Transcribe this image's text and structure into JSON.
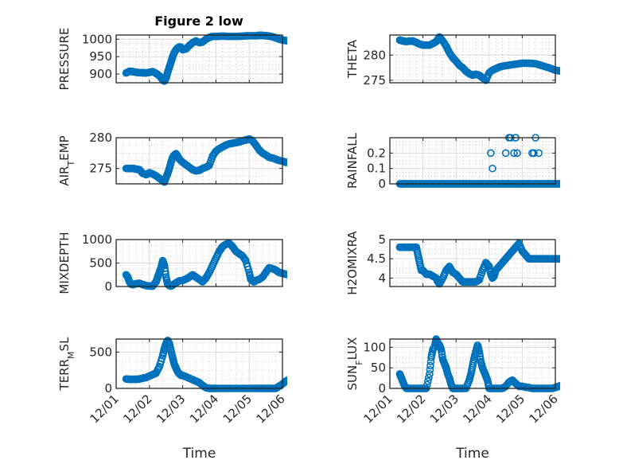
{
  "chart_data": {
    "type": "scatter",
    "title": "Figure 2 low",
    "x_tick_labels": [
      "12/01",
      "12/02",
      "12/03",
      "12/04",
      "12/05",
      "12/06"
    ],
    "x_unit": "days since 12/01",
    "xlim": [
      0,
      5
    ],
    "marker_color": "#0072BD",
    "marker": "circle-open",
    "grid": true,
    "subplots": [
      {
        "name": "pressure",
        "ylabel": "PRESSURE",
        "ylabel_main": "PRESSURE",
        "ylabel_sub": "",
        "ylabel_tail": "",
        "ylim": [
          875,
          1012
        ],
        "yticks": [
          900,
          950,
          1000
        ],
        "xlabel": "",
        "x": [
          0.3,
          0.4,
          0.5,
          0.6,
          0.7,
          0.8,
          0.9,
          1.0,
          1.1,
          1.2,
          1.3,
          1.4,
          1.45,
          1.5,
          1.55,
          1.6,
          1.65,
          1.7,
          1.75,
          1.8,
          1.85,
          1.9,
          1.95,
          2.0,
          2.1,
          2.2,
          2.3,
          2.4,
          2.5,
          2.6,
          2.7,
          2.8,
          2.9,
          3.0,
          3.2,
          3.4,
          3.6,
          3.8,
          4.0,
          4.2,
          4.3,
          4.4,
          4.5,
          4.6,
          4.7,
          4.8,
          4.9,
          5.0,
          5.1,
          5.2,
          5.3,
          5.4
        ],
        "y": [
          903,
          908,
          907,
          905,
          904,
          904,
          903,
          905,
          907,
          902,
          895,
          883,
          880,
          888,
          905,
          920,
          935,
          950,
          962,
          970,
          975,
          978,
          977,
          970,
          972,
          982,
          990,
          995,
          990,
          992,
          1000,
          1005,
          1008,
          1008,
          1009,
          1008,
          1008,
          1009,
          1010,
          1010,
          1011,
          1011,
          1010,
          1009,
          1007,
          1004,
          1000,
          998,
          996,
          995,
          994,
          991
        ]
      },
      {
        "name": "theta",
        "ylabel": "THETA",
        "ylabel_main": "THETA",
        "ylabel_sub": "",
        "ylabel_tail": "",
        "ylim": [
          274.5,
          284
        ],
        "yticks": [
          275,
          280
        ],
        "xlabel": "",
        "x": [
          0.3,
          0.4,
          0.5,
          0.6,
          0.7,
          0.8,
          0.9,
          1.0,
          1.1,
          1.2,
          1.3,
          1.4,
          1.5,
          1.6,
          1.7,
          1.8,
          1.9,
          2.0,
          2.1,
          2.2,
          2.3,
          2.4,
          2.5,
          2.6,
          2.7,
          2.8,
          2.9,
          3.0,
          3.1,
          3.2,
          3.3,
          3.4,
          3.6,
          3.8,
          4.0,
          4.2,
          4.4,
          4.6,
          4.8,
          5.0,
          5.2,
          5.3,
          5.4
        ],
        "y": [
          283,
          282.8,
          282.7,
          282.8,
          282.8,
          282.5,
          282.2,
          282,
          282,
          282,
          282.3,
          282.7,
          283.6,
          282.8,
          281.8,
          280.5,
          279.5,
          278.8,
          278,
          277.5,
          276.8,
          276.3,
          276,
          276.2,
          276,
          275.5,
          275,
          276.5,
          277,
          277.3,
          277.6,
          277.8,
          278,
          278.2,
          278.4,
          278.4,
          278.3,
          277.9,
          277.5,
          277,
          276.8,
          276.8,
          276.7
        ]
      },
      {
        "name": "air-temp",
        "ylabel": "AIR_TEMP",
        "ylabel_main": "AIR",
        "ylabel_sub": "T",
        "ylabel_tail": "EMP",
        "ylim": [
          272.5,
          280
        ],
        "yticks": [
          275,
          280
        ],
        "xlabel": "",
        "x": [
          0.3,
          0.4,
          0.5,
          0.6,
          0.7,
          0.8,
          0.9,
          1.0,
          1.1,
          1.2,
          1.3,
          1.4,
          1.45,
          1.5,
          1.55,
          1.6,
          1.65,
          1.7,
          1.75,
          1.8,
          1.85,
          1.9,
          2.0,
          2.1,
          2.2,
          2.3,
          2.4,
          2.5,
          2.6,
          2.7,
          2.8,
          2.9,
          3.0,
          3.1,
          3.2,
          3.3,
          3.4,
          3.5,
          3.6,
          3.7,
          3.8,
          3.9,
          4.0,
          4.1,
          4.2,
          4.3,
          4.4,
          4.5,
          4.6,
          4.7,
          4.8,
          4.9,
          5.0,
          5.1,
          5.2,
          5.3,
          5.4
        ],
        "y": [
          275,
          275,
          275,
          274.9,
          274.8,
          274.2,
          274.0,
          274.3,
          274.1,
          273.8,
          273.4,
          273.0,
          272.8,
          273.5,
          274.2,
          275.0,
          276.0,
          276.8,
          277.2,
          277.4,
          277.0,
          276.5,
          276.0,
          275.6,
          275.2,
          274.8,
          274.6,
          274.7,
          275.0,
          275.2,
          275.5,
          277.0,
          277.8,
          278.2,
          278.5,
          278.8,
          279.0,
          279.1,
          279.2,
          279.3,
          279.5,
          279.6,
          279.8,
          279.5,
          278.8,
          278.0,
          277.5,
          277.2,
          276.8,
          276.7,
          276.5,
          276.3,
          276.2,
          276.0,
          276,
          275.9,
          275.8
        ]
      },
      {
        "name": "rainfall",
        "ylabel": "RAINFALL",
        "ylabel_main": "RAINFALL",
        "ylabel_sub": "",
        "ylabel_tail": "",
        "ylim": [
          0,
          0.3
        ],
        "yticks": [
          0,
          0.1,
          0.2
        ],
        "xlabel": "",
        "x": [
          0.45,
          0.6,
          0.75,
          0.9,
          1.05,
          1.2,
          1.35,
          1.5,
          1.65,
          1.8,
          1.95,
          2.1,
          2.25,
          2.4,
          2.55,
          2.7,
          2.85,
          3.0,
          3.15,
          3.3,
          3.45,
          3.6,
          3.75,
          3.9,
          4.05,
          4.2,
          4.35,
          4.5,
          4.65,
          4.8,
          4.95,
          5.1,
          5.25,
          5.4,
          3.05,
          3.1,
          3.5,
          3.6,
          3.65,
          3.75,
          3.8,
          3.8,
          3.85,
          3.9,
          4.3,
          4.35,
          4.4,
          4.5
        ],
        "y": [
          0,
          0,
          0,
          0,
          0,
          0,
          0,
          0,
          0,
          0,
          0,
          0,
          0,
          0,
          0,
          0,
          0,
          0,
          0,
          0,
          0,
          0,
          0,
          0,
          0,
          0,
          0,
          0,
          0,
          0,
          0,
          0,
          0,
          0,
          0.2,
          0.1,
          0.2,
          0.3,
          0.3,
          0.2,
          0.3,
          0.3,
          0.2,
          0.0,
          0.2,
          0.2,
          0.3,
          0.2
        ]
      },
      {
        "name": "mixdepth",
        "ylabel": "MIXDEPTH",
        "ylabel_main": "MIXDEPTH",
        "ylabel_sub": "",
        "ylabel_tail": "",
        "ylim": [
          0,
          1000
        ],
        "yticks": [
          0,
          500,
          1000
        ],
        "xlabel": "",
        "x": [
          0.3,
          0.35,
          0.4,
          0.45,
          0.5,
          0.6,
          0.7,
          0.8,
          0.9,
          1.0,
          1.1,
          1.2,
          1.25,
          1.3,
          1.35,
          1.4,
          1.45,
          1.5,
          1.55,
          1.6,
          1.65,
          1.7,
          1.8,
          1.9,
          2.0,
          2.1,
          2.2,
          2.3,
          2.4,
          2.5,
          2.6,
          2.7,
          2.8,
          2.9,
          3.0,
          3.1,
          3.15,
          3.2,
          3.3,
          3.4,
          3.5,
          3.6,
          3.7,
          3.8,
          3.9,
          4.0,
          4.05,
          4.1,
          4.15,
          4.2,
          4.3,
          4.4,
          4.5,
          4.6,
          4.7,
          4.8,
          4.9,
          5.0,
          5.1,
          5.2,
          5.3,
          5.4
        ],
        "y": [
          250,
          200,
          100,
          50,
          40,
          60,
          70,
          40,
          20,
          10,
          10,
          100,
          200,
          300,
          400,
          550,
          450,
          200,
          50,
          20,
          10,
          30,
          80,
          120,
          130,
          160,
          200,
          250,
          200,
          150,
          100,
          180,
          300,
          450,
          600,
          750,
          800,
          850,
          900,
          920,
          850,
          750,
          700,
          650,
          550,
          300,
          150,
          120,
          100,
          130,
          150,
          200,
          300,
          400,
          380,
          350,
          300,
          280,
          260,
          250,
          250,
          250
        ]
      },
      {
        "name": "h2omixra",
        "ylabel": "H2OMIXRA",
        "ylabel_main": "H2OMIXRA",
        "ylabel_sub": "",
        "ylabel_tail": "",
        "ylim": [
          3.78,
          5
        ],
        "yticks": [
          4,
          4.5,
          5
        ],
        "xlabel": "",
        "x": [
          0.3,
          0.4,
          0.5,
          0.6,
          0.7,
          0.8,
          0.85,
          0.9,
          0.95,
          1.0,
          1.1,
          1.2,
          1.3,
          1.4,
          1.45,
          1.5,
          1.6,
          1.7,
          1.8,
          1.9,
          2.0,
          2.1,
          2.2,
          2.3,
          2.4,
          2.5,
          2.6,
          2.7,
          2.8,
          2.9,
          3.0,
          3.05,
          3.1,
          3.15,
          3.2,
          3.3,
          3.4,
          3.5,
          3.6,
          3.7,
          3.8,
          3.9,
          4.0,
          4.1,
          4.2,
          4.3,
          4.4,
          4.5,
          4.6,
          4.7,
          4.8,
          4.9,
          5.0,
          5.1,
          5.2,
          5.3,
          5.4
        ],
        "y": [
          4.8,
          4.8,
          4.8,
          4.8,
          4.8,
          4.8,
          4.6,
          4.4,
          4.2,
          4.2,
          4.1,
          4.1,
          4.05,
          4.0,
          3.9,
          3.85,
          4.0,
          4.2,
          4.3,
          4.15,
          4.1,
          4.0,
          3.9,
          3.9,
          3.9,
          3.9,
          3.9,
          3.95,
          4.2,
          4.4,
          4.3,
          4.1,
          4.0,
          4.05,
          4.2,
          4.3,
          4.4,
          4.5,
          4.6,
          4.7,
          4.8,
          4.9,
          4.7,
          4.6,
          4.5,
          4.5,
          4.5,
          4.5,
          4.5,
          4.5,
          4.5,
          4.5,
          4.5,
          4.5,
          4.5,
          4.5,
          4.5
        ]
      },
      {
        "name": "terr-msl",
        "ylabel": "TERR_MSL",
        "ylabel_main": "TERR",
        "ylabel_sub": "M",
        "ylabel_tail": "SL",
        "ylim": [
          0,
          680
        ],
        "yticks": [
          0,
          500
        ],
        "xlabel": "Time",
        "x": [
          0.3,
          0.4,
          0.5,
          0.6,
          0.7,
          0.8,
          0.9,
          1.0,
          1.1,
          1.2,
          1.3,
          1.4,
          1.45,
          1.5,
          1.55,
          1.6,
          1.65,
          1.7,
          1.75,
          1.8,
          1.85,
          1.9,
          1.95,
          2.0,
          2.1,
          2.2,
          2.3,
          2.4,
          2.5,
          2.6,
          2.7,
          2.8,
          2.9,
          3.0,
          3.2,
          3.4,
          3.6,
          3.8,
          4.0,
          4.2,
          4.3,
          4.4,
          4.5,
          4.6,
          4.7,
          4.8,
          4.9,
          5.0,
          5.1,
          5.2,
          5.3,
          5.4
        ],
        "y": [
          130,
          125,
          125,
          125,
          130,
          140,
          150,
          170,
          190,
          210,
          300,
          450,
          550,
          620,
          660,
          620,
          520,
          420,
          330,
          280,
          230,
          200,
          180,
          180,
          160,
          140,
          120,
          100,
          80,
          40,
          10,
          0,
          0,
          0,
          0,
          0,
          0,
          0,
          0,
          0,
          0,
          0,
          0,
          0,
          0,
          0,
          30,
          60,
          100,
          120,
          140,
          150
        ]
      },
      {
        "name": "sun-flux",
        "ylabel": "SUN_FLUX",
        "ylabel_main": "SUN",
        "ylabel_sub": "F",
        "ylabel_tail": "LUX",
        "ylim": [
          0,
          120
        ],
        "yticks": [
          0,
          50,
          100
        ],
        "xlabel": "Time",
        "x": [
          0.3,
          0.35,
          0.4,
          0.45,
          0.5,
          0.6,
          0.7,
          0.8,
          0.9,
          1.0,
          1.1,
          1.2,
          1.25,
          1.3,
          1.35,
          1.4,
          1.45,
          1.5,
          1.55,
          1.6,
          1.65,
          1.7,
          1.75,
          1.8,
          1.85,
          1.9,
          1.95,
          2.0,
          2.1,
          2.2,
          2.3,
          2.4,
          2.45,
          2.5,
          2.55,
          2.6,
          2.65,
          2.7,
          2.75,
          2.8,
          2.85,
          2.9,
          2.95,
          3.0,
          3.1,
          3.2,
          3.3,
          3.4,
          3.5,
          3.6,
          3.7,
          3.8,
          3.9,
          4.0,
          4.1,
          4.2,
          4.3,
          4.4,
          4.5,
          4.6,
          4.7,
          4.8,
          4.9,
          5.0,
          5.1,
          5.2,
          5.3,
          5.4
        ],
        "y": [
          35,
          25,
          15,
          5,
          0,
          0,
          0,
          0,
          0,
          0,
          0,
          35,
          75,
          95,
          100,
          120,
          110,
          105,
          95,
          70,
          60,
          50,
          35,
          25,
          10,
          0,
          0,
          0,
          0,
          0,
          0,
          20,
          35,
          55,
          75,
          90,
          105,
          90,
          65,
          50,
          40,
          30,
          20,
          0,
          0,
          0,
          0,
          0,
          5,
          15,
          20,
          12,
          5,
          5,
          3,
          2,
          0,
          0,
          0,
          0,
          0,
          0,
          0,
          2,
          5,
          8,
          5,
          5
        ]
      }
    ]
  }
}
